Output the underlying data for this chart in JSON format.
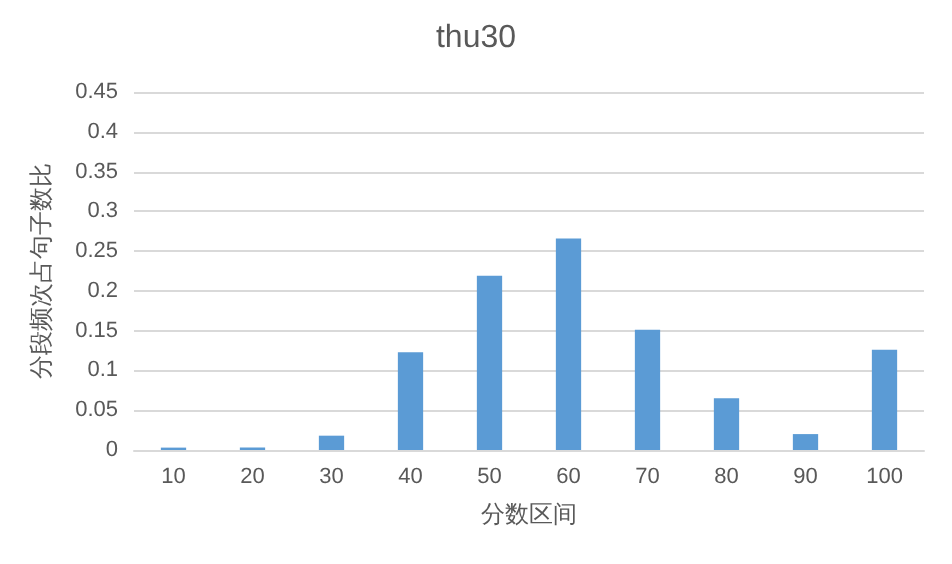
{
  "chart_data": {
    "type": "bar",
    "title": "thu30",
    "xlabel": "分数区间",
    "ylabel": "分段频次占句子数比",
    "categories": [
      "10",
      "20",
      "30",
      "40",
      "50",
      "60",
      "70",
      "80",
      "90",
      "100"
    ],
    "values": [
      0.003,
      0.003,
      0.018,
      0.123,
      0.219,
      0.266,
      0.151,
      0.065,
      0.02,
      0.126
    ],
    "color": "#5b9bd5",
    "ylim": [
      0,
      0.45
    ],
    "yticks": [
      0,
      0.05,
      0.1,
      0.15,
      0.2,
      0.25,
      0.3,
      0.35,
      0.4,
      0.45
    ],
    "grid": "y"
  }
}
